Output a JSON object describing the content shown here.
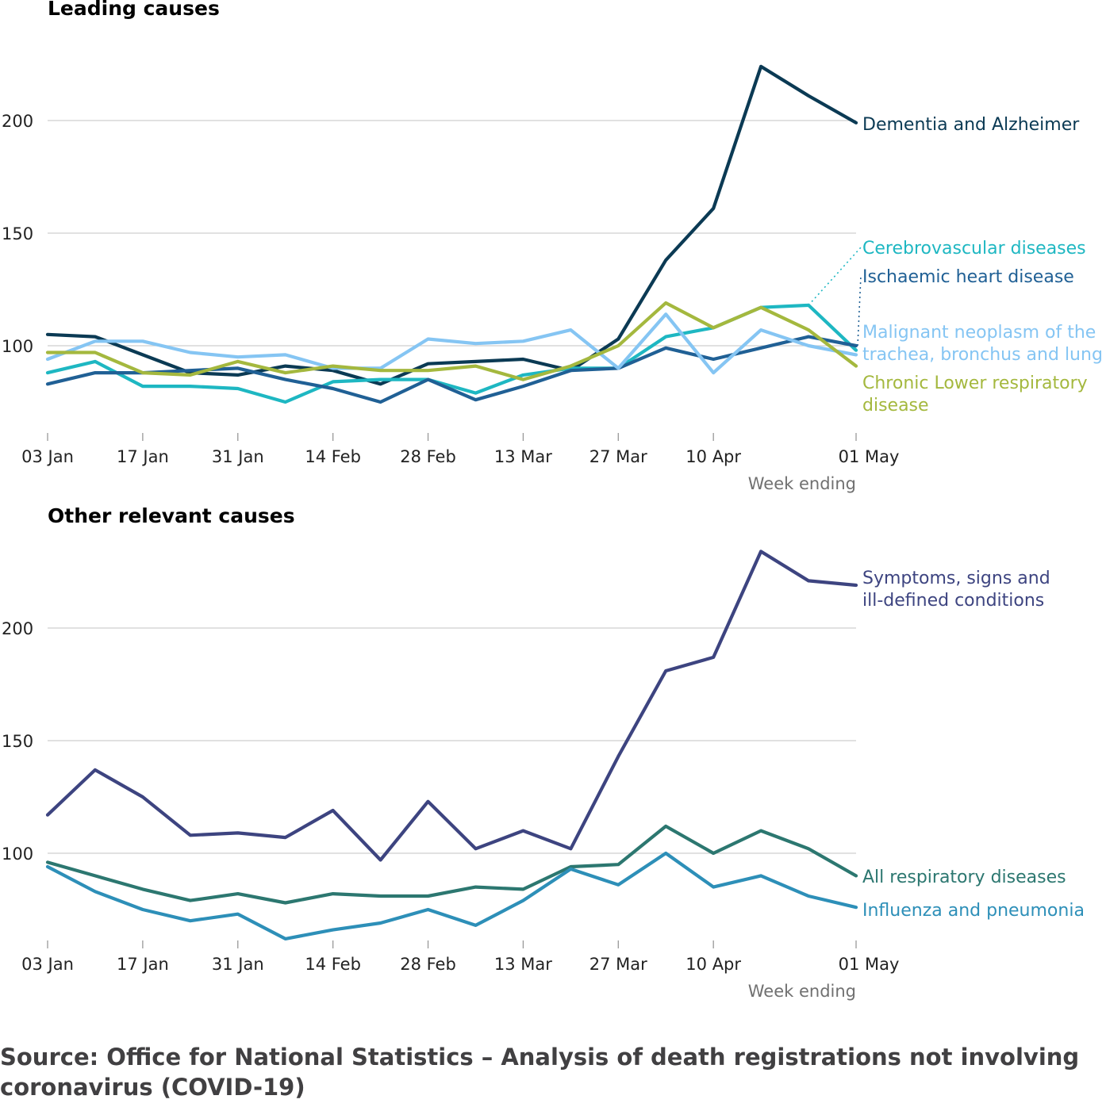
{
  "source_text": "Source: Office for National Statistics – Analysis of death registrations not involving coronavirus (COVID-19)",
  "chart_data": [
    {
      "type": "line",
      "title": "Leading causes",
      "xlabel": "Week ending",
      "ylabel": "",
      "x_tick_labels": [
        "03 Jan",
        "17 Jan",
        "31 Jan",
        "14 Feb",
        "28 Feb",
        "13 Mar",
        "27 Mar",
        "10 Apr",
        "01 May"
      ],
      "y_ticks": [
        100,
        150,
        200
      ],
      "ylim": [
        60,
        230
      ],
      "grid": true,
      "x": [
        "03 Jan",
        "10 Jan",
        "17 Jan",
        "24 Jan",
        "31 Jan",
        "07 Feb",
        "14 Feb",
        "21 Feb",
        "28 Feb",
        "06 Mar",
        "13 Mar",
        "20 Mar",
        "27 Mar",
        "03 Apr",
        "10 Apr",
        "17 Apr",
        "24 Apr",
        "01 May"
      ],
      "series": [
        {
          "name": "Dementia and Alzheimer",
          "color": "#0b3a54",
          "label_lines": [
            "Dementia and Alzheimer"
          ],
          "values": [
            105,
            104,
            96,
            88,
            87,
            91,
            89,
            83,
            92,
            93,
            94,
            89,
            103,
            138,
            161,
            224,
            211,
            199
          ]
        },
        {
          "name": "Cerebrovascular diseases",
          "color": "#1eb7c2",
          "label_lines": [
            "Cerebrovascular diseases"
          ],
          "values": [
            88,
            93,
            82,
            82,
            81,
            75,
            84,
            85,
            85,
            79,
            87,
            90,
            90,
            104,
            108,
            117,
            118,
            98
          ]
        },
        {
          "name": "Ischaemic heart disease",
          "color": "#206095",
          "label_lines": [
            "Ischaemic heart disease"
          ],
          "values": [
            83,
            88,
            88,
            89,
            90,
            85,
            81,
            75,
            85,
            76,
            82,
            89,
            90,
            99,
            94,
            99,
            104,
            100
          ]
        },
        {
          "name": "Malignant neoplasm of the trachea, bronchus and lung",
          "color": "#85c5f3",
          "label_lines": [
            "Malignant neoplasm of the",
            "trachea, bronchus and lung"
          ],
          "values": [
            94,
            102,
            102,
            97,
            95,
            96,
            90,
            90,
            103,
            101,
            102,
            107,
            90,
            114,
            88,
            107,
            100,
            96
          ]
        },
        {
          "name": "Chronic Lower respiratory disease",
          "color": "#a4b83e",
          "label_lines": [
            "Chronic Lower respiratory",
            "disease"
          ],
          "values": [
            97,
            97,
            88,
            87,
            93,
            88,
            91,
            89,
            89,
            91,
            85,
            91,
            100,
            119,
            108,
            117,
            107,
            91
          ]
        }
      ]
    },
    {
      "type": "line",
      "title": "Other relevant causes",
      "xlabel": "Week ending",
      "ylabel": "",
      "x_tick_labels": [
        "03 Jan",
        "17 Jan",
        "31 Jan",
        "14 Feb",
        "28 Feb",
        "13 Mar",
        "27 Mar",
        "10 Apr",
        "01 May"
      ],
      "y_ticks": [
        100,
        150,
        200
      ],
      "ylim": [
        60,
        235
      ],
      "grid": true,
      "x": [
        "03 Jan",
        "10 Jan",
        "17 Jan",
        "24 Jan",
        "31 Jan",
        "07 Feb",
        "14 Feb",
        "21 Feb",
        "28 Feb",
        "06 Mar",
        "13 Mar",
        "20 Mar",
        "27 Mar",
        "03 Apr",
        "10 Apr",
        "17 Apr",
        "24 Apr",
        "01 May"
      ],
      "series": [
        {
          "name": "Symptoms, signs and ill-defined conditions",
          "color": "#3d4480",
          "label_lines": [
            "Symptoms, signs and",
            "ill-defined conditions"
          ],
          "values": [
            117,
            137,
            125,
            108,
            109,
            107,
            119,
            97,
            123,
            102,
            110,
            102,
            143,
            181,
            187,
            234,
            221,
            219
          ]
        },
        {
          "name": "All respiratory diseases",
          "color": "#2c7770",
          "label_lines": [
            "All respiratory diseases"
          ],
          "values": [
            96,
            90,
            84,
            79,
            82,
            78,
            82,
            81,
            81,
            85,
            84,
            94,
            95,
            112,
            100,
            110,
            102,
            90
          ]
        },
        {
          "name": "Influenza and pneumonia",
          "color": "#2d8fb8",
          "label_lines": [
            "Influenza and pneumonia"
          ],
          "values": [
            94,
            83,
            75,
            70,
            73,
            62,
            66,
            69,
            75,
            68,
            79,
            93,
            86,
            100,
            85,
            90,
            81,
            76
          ]
        }
      ]
    }
  ]
}
